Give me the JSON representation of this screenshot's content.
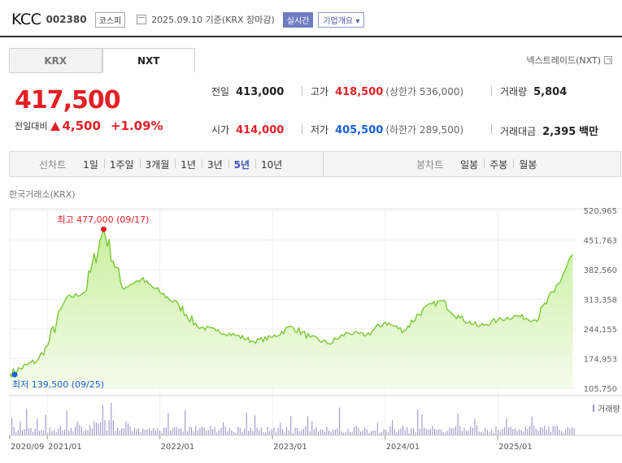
{
  "header": {
    "name": "KCC",
    "code": "002380",
    "market": "코스피",
    "date_text": "2025.09.10 기준(KRX 장마감)",
    "realtime": "실시간",
    "company_info": "기업개요"
  },
  "tabs": [
    {
      "label": "KRX",
      "active": false
    },
    {
      "label": "NXT",
      "active": true
    }
  ],
  "nxt_link": "넥스트레이드(NXT)",
  "price": {
    "current": "417,500",
    "change_label": "전일대비",
    "change": "4,500",
    "change_pct": "+1.09%"
  },
  "stats": {
    "prev_close": {
      "label": "전일",
      "value": "413,000"
    },
    "open": {
      "label": "시가",
      "value": "414,000"
    },
    "high": {
      "label": "고가",
      "value": "418,500",
      "limit": "(상한가 536,000)"
    },
    "low": {
      "label": "저가",
      "value": "405,500",
      "limit": "(하한가 289,500)"
    },
    "volume": {
      "label": "거래량",
      "value": "5,804"
    },
    "amount": {
      "label": "거래대금",
      "value": "2,395",
      "unit": "백만"
    }
  },
  "periods": {
    "line_label": "선차트",
    "line_items": [
      "1일",
      "1주일",
      "3개월",
      "1년",
      "3년",
      "5년",
      "10년"
    ],
    "line_selected": "5년",
    "candle_label": "봉차트",
    "candle_items": [
      "일봉",
      "주봉",
      "월봉"
    ]
  },
  "exchange_label": "한국거래소(KRX)",
  "chart_data": {
    "type": "area",
    "y_ticks": [
      "520,965",
      "451,763",
      "382,560",
      "313,358",
      "244,155",
      "174,953",
      "105,750"
    ],
    "ylim": [
      105750,
      520965
    ],
    "x_ticks": [
      "2020/09",
      "2021/01",
      "2022/01",
      "2023/01",
      "2024/01",
      "2025/01"
    ],
    "x": [
      "2020/09",
      "2020/12",
      "2021/01",
      "2021/03",
      "2021/05",
      "2021/07",
      "2021/09",
      "2021/11",
      "2022/01",
      "2022/03",
      "2022/05",
      "2022/07",
      "2022/09",
      "2022/11",
      "2023/01",
      "2023/03",
      "2023/05",
      "2023/07",
      "2023/09",
      "2023/11",
      "2024/01",
      "2024/03",
      "2024/05",
      "2024/07",
      "2024/09",
      "2024/11",
      "2025/01",
      "2025/03",
      "2025/05",
      "2025/07",
      "2025/09"
    ],
    "values": [
      139500,
      172000,
      205000,
      315000,
      330000,
      477000,
      340000,
      360000,
      330000,
      300000,
      250000,
      240000,
      230000,
      215000,
      225000,
      250000,
      225000,
      210000,
      235000,
      230000,
      260000,
      240000,
      290000,
      310000,
      270000,
      250000,
      265000,
      275000,
      265000,
      330000,
      417500
    ],
    "high_annotation": "최고 477,000 (09/17)",
    "low_annotation": "최저 139,500 (09/25)",
    "volume_label": "거래량",
    "colors": {
      "line": "#7cc836",
      "fill_top": "#c8ef9e",
      "fill_bottom": "#f4fbea",
      "high": "#e41f25",
      "low": "#1a5fd6",
      "volume": "#9e94c9"
    }
  }
}
